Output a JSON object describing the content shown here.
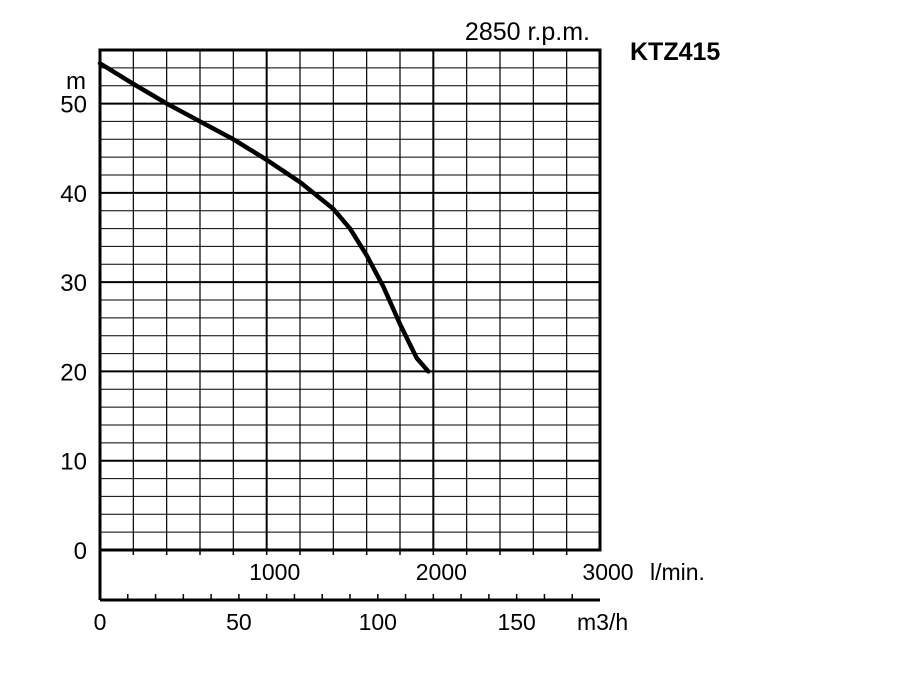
{
  "chart_data": {
    "type": "line",
    "title": "KTZ415",
    "speed_label": "2850 r.p.m.",
    "ylabel": "m",
    "ylim": [
      0,
      56
    ],
    "y_ticks": [
      "0",
      "10",
      "20",
      "30",
      "40",
      "50"
    ],
    "y_tick_values": [
      0,
      10,
      20,
      30,
      40,
      50
    ],
    "x_axis_lmin": {
      "range": [
        0,
        3000
      ],
      "ticks": [
        "1000",
        "2000",
        "3000"
      ],
      "tick_values": [
        1000,
        2000,
        3000
      ],
      "unit": "l/min."
    },
    "x_axis_m3h": {
      "range": [
        0,
        180
      ],
      "ticks": [
        "0",
        "50",
        "100",
        "150"
      ],
      "tick_values": [
        0,
        50,
        100,
        150
      ],
      "unit": "m3/h"
    },
    "grid": true,
    "series": [
      {
        "x_lmin": [
          0,
          200,
          400,
          600,
          800,
          1000,
          1200,
          1400,
          1500,
          1600,
          1700,
          1800,
          1900,
          1970
        ],
        "y": [
          54.5,
          52.2,
          50,
          48,
          46,
          43.7,
          41.2,
          38.2,
          36,
          33,
          29.5,
          25.3,
          21.5,
          20
        ]
      }
    ]
  }
}
